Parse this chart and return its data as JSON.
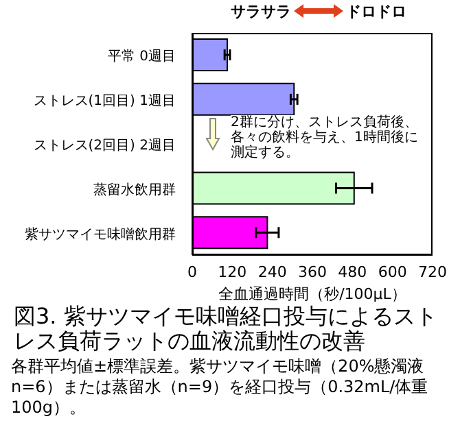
{
  "chart_data": {
    "type": "bar",
    "orientation": "horizontal",
    "title": "図3. 紫サツマイモ味噌経口投与によるストレス負荷ラットの血液流動性の改善",
    "xlabel": "全血通過時間（秒/100μL）",
    "categories": [
      "平常 0週目",
      "ストレス(1回目) 1週目",
      "ストレス(2回目) 2週目",
      "蒸留水飲用群",
      "紫サツマイモ味噌飲用群"
    ],
    "values": [
      105,
      305,
      null,
      485,
      225
    ],
    "errors": [
      8,
      10,
      null,
      54,
      34
    ],
    "colors": [
      "#9999ff",
      "#9999ff",
      "#9999ff",
      "#ccffcc",
      "#ff00ff"
    ],
    "xlim": [
      0,
      720
    ],
    "xticks": [
      0,
      120,
      240,
      360,
      480,
      600,
      720
    ],
    "annotations": [
      "サラサラ",
      "ドロドロ",
      "2群に分け、ストレス負荷後、各々の飲料を与え、1時間後に測定する。",
      "各群平均値±標準誤差。紫サツマイモ味噌（20%懸濁液 n=6）または蒸留水（n=9）を経口投与（0.32mL/体重100g）。"
    ]
  }
}
